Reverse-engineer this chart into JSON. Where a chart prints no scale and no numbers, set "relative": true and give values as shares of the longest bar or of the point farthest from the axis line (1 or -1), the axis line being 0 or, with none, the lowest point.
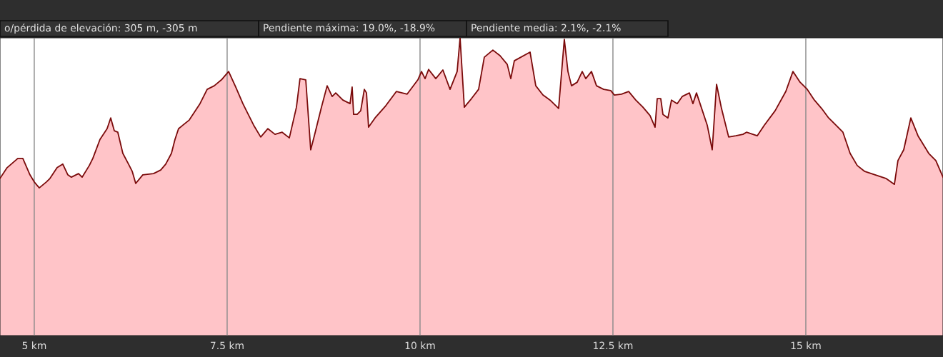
{
  "chart_data": {
    "type": "area",
    "relative": true,
    "color": "#7a0a0a",
    "grid": "x",
    "legend": false,
    "annotations": [
      "o/pérdida de elevación: 305 m, -305 m",
      "Pendiente máxima: 19.0%, -18.9%",
      "Pendiente media: 2.1%, -2.1%"
    ],
    "xlim": [
      4.556,
      16.778
    ],
    "xticks": [
      {
        "value": 5,
        "label": "5 km"
      },
      {
        "value": 7.5,
        "label": "7.5 km"
      },
      {
        "value": 10,
        "label": "10 km"
      },
      {
        "value": 12.5,
        "label": "12.5 km"
      },
      {
        "value": 15,
        "label": "15 km"
      }
    ],
    "x": [
      4.556,
      4.648,
      4.787,
      4.852,
      4.944,
      5.0,
      5.065,
      5.157,
      5.204,
      5.296,
      5.37,
      5.435,
      5.481,
      5.574,
      5.62,
      5.713,
      5.759,
      5.852,
      5.944,
      5.991,
      6.037,
      6.083,
      6.148,
      6.222,
      6.269,
      6.315,
      6.407,
      6.546,
      6.639,
      6.704,
      6.778,
      6.824,
      6.87,
      7.009,
      7.148,
      7.241,
      7.333,
      7.426,
      7.519,
      7.611,
      7.704,
      7.75,
      7.843,
      7.935,
      8.028,
      8.12,
      8.213,
      8.306,
      8.398,
      8.444,
      8.519,
      8.583,
      8.63,
      8.722,
      8.796,
      8.861,
      8.907,
      9.0,
      9.093,
      9.12,
      9.139,
      9.185,
      9.231,
      9.278,
      9.306,
      9.333,
      9.417,
      9.556,
      9.694,
      9.833,
      9.972,
      10.019,
      10.065,
      10.111,
      10.204,
      10.296,
      10.389,
      10.481,
      10.519,
      10.574,
      10.667,
      10.759,
      10.833,
      10.944,
      11.037,
      11.13,
      11.176,
      11.222,
      11.426,
      11.5,
      11.593,
      11.685,
      11.796,
      11.87,
      11.917,
      11.963,
      12.037,
      12.102,
      12.148,
      12.222,
      12.287,
      12.38,
      12.472,
      12.519,
      12.611,
      12.704,
      12.796,
      12.889,
      12.981,
      13.046,
      13.074,
      13.12,
      13.148,
      13.213,
      13.259,
      13.333,
      13.398,
      13.491,
      13.537,
      13.583,
      13.722,
      13.787,
      13.843,
      13.907,
      14.0,
      14.093,
      14.185,
      14.231,
      14.37,
      14.463,
      14.602,
      14.741,
      14.833,
      14.926,
      15.019,
      15.111,
      15.204,
      15.296,
      15.389,
      15.481,
      15.574,
      15.667,
      15.759,
      15.898,
      16.037,
      16.148,
      16.194,
      16.269,
      16.361,
      16.454,
      16.593,
      16.685,
      16.778
    ],
    "values": [
      0.528,
      0.564,
      0.595,
      0.595,
      0.54,
      0.516,
      0.496,
      0.516,
      0.528,
      0.564,
      0.576,
      0.54,
      0.532,
      0.544,
      0.532,
      0.571,
      0.595,
      0.659,
      0.695,
      0.731,
      0.688,
      0.683,
      0.612,
      0.576,
      0.552,
      0.511,
      0.54,
      0.544,
      0.556,
      0.576,
      0.612,
      0.659,
      0.695,
      0.724,
      0.779,
      0.827,
      0.839,
      0.859,
      0.887,
      0.835,
      0.779,
      0.755,
      0.707,
      0.667,
      0.695,
      0.676,
      0.683,
      0.664,
      0.767,
      0.863,
      0.859,
      0.624,
      0.671,
      0.767,
      0.839,
      0.803,
      0.815,
      0.791,
      0.779,
      0.835,
      0.743,
      0.743,
      0.755,
      0.827,
      0.815,
      0.7,
      0.731,
      0.772,
      0.82,
      0.811,
      0.859,
      0.887,
      0.863,
      0.894,
      0.863,
      0.892,
      0.827,
      0.887,
      1.0,
      0.767,
      0.796,
      0.827,
      0.935,
      0.959,
      0.94,
      0.911,
      0.863,
      0.923,
      0.952,
      0.839,
      0.808,
      0.791,
      0.763,
      0.995,
      0.887,
      0.839,
      0.851,
      0.887,
      0.863,
      0.887,
      0.839,
      0.827,
      0.823,
      0.808,
      0.811,
      0.82,
      0.791,
      0.767,
      0.739,
      0.7,
      0.796,
      0.796,
      0.743,
      0.731,
      0.791,
      0.779,
      0.803,
      0.815,
      0.779,
      0.815,
      0.707,
      0.624,
      0.844,
      0.763,
      0.667,
      0.671,
      0.676,
      0.683,
      0.671,
      0.707,
      0.755,
      0.82,
      0.887,
      0.851,
      0.827,
      0.791,
      0.763,
      0.731,
      0.707,
      0.683,
      0.612,
      0.571,
      0.552,
      0.54,
      0.528,
      0.508,
      0.588,
      0.624,
      0.731,
      0.671,
      0.612,
      0.588,
      0.532
    ]
  }
}
